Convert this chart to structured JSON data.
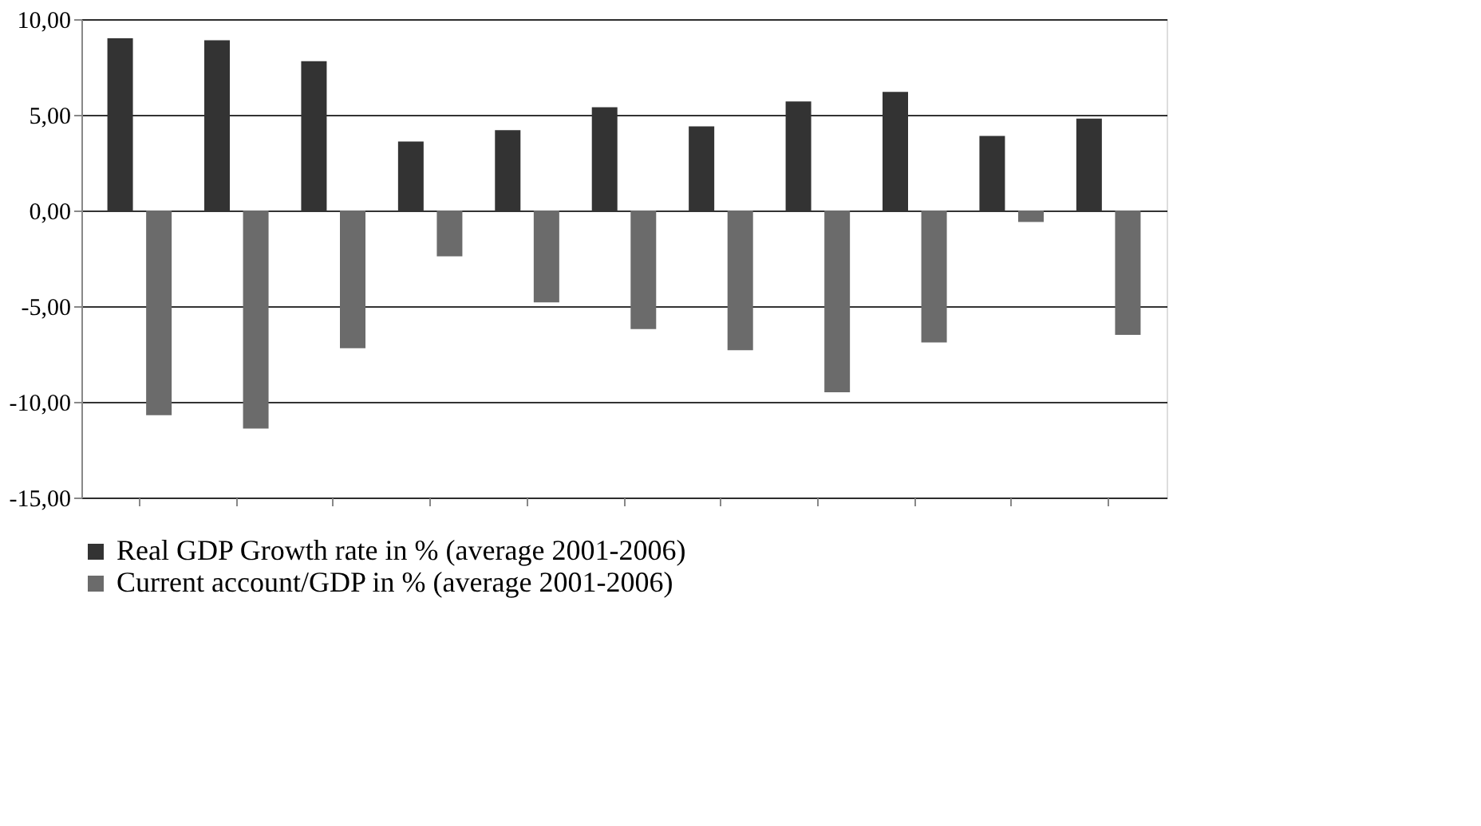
{
  "chart_data": {
    "type": "bar",
    "categories": [
      null,
      null,
      null,
      null,
      null,
      null,
      null,
      null,
      null,
      null,
      null
    ],
    "series": [
      {
        "name": "Real GDP Growth rate in % (average 2001-2006)",
        "color": "#333333",
        "values": [
          9.0,
          8.9,
          7.8,
          3.6,
          4.2,
          5.4,
          4.4,
          5.7,
          6.2,
          3.9,
          4.8
        ]
      },
      {
        "name": "Current account/GDP in % (average 2001-2006)",
        "color": "#6b6b6b",
        "values": [
          -10.7,
          -11.4,
          -7.2,
          -2.4,
          -4.8,
          -6.2,
          -7.3,
          -9.5,
          -6.9,
          -0.6,
          -6.5
        ]
      }
    ],
    "ylim": [
      -15,
      10
    ],
    "yticks": [
      {
        "value": -15,
        "label": "-15,00"
      },
      {
        "value": -10,
        "label": "-10,00"
      },
      {
        "value": -5,
        "label": "-5,00"
      },
      {
        "value": 0,
        "label": "0,00"
      },
      {
        "value": 5,
        "label": "5,00"
      },
      {
        "value": 10,
        "label": "10,00"
      }
    ],
    "grid": "y",
    "legend": "bottom"
  }
}
